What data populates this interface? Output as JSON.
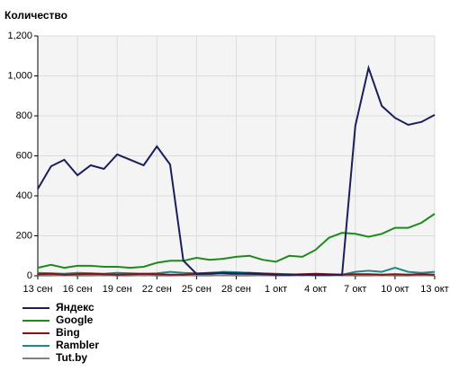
{
  "chart_data": {
    "type": "line",
    "title": "Количество",
    "categories": [
      "13 сен",
      null,
      null,
      "16 сен",
      null,
      null,
      "19 сен",
      null,
      null,
      "22 сен",
      null,
      null,
      "25 сен",
      null,
      null,
      "28 сен",
      null,
      null,
      "1 окт",
      null,
      null,
      "4 окт",
      null,
      null,
      "7 окт",
      null,
      null,
      "10 окт",
      null,
      null,
      "13 окт"
    ],
    "series": [
      {
        "name": "Яндекс",
        "color": "#1a1f5c",
        "values": [
          435,
          548,
          580,
          503,
          553,
          535,
          607,
          580,
          553,
          647,
          557,
          76,
          9,
          10,
          15,
          12,
          10,
          8,
          5,
          5,
          5,
          5,
          5,
          5,
          750,
          1040,
          850,
          790,
          755,
          770,
          805
        ]
      },
      {
        "name": "Google",
        "color": "#1e8a1e",
        "values": [
          40,
          55,
          40,
          50,
          50,
          45,
          45,
          40,
          45,
          65,
          75,
          75,
          90,
          80,
          85,
          95,
          100,
          80,
          70,
          100,
          95,
          130,
          190,
          215,
          210,
          195,
          210,
          240,
          240,
          265,
          310
        ]
      },
      {
        "name": "Bing",
        "color": "#8b1010",
        "values": [
          8,
          10,
          6,
          8,
          10,
          8,
          6,
          8,
          10,
          8,
          6,
          6,
          10,
          15,
          12,
          10,
          15,
          10,
          8,
          6,
          8,
          10,
          8,
          6,
          8,
          8,
          6,
          8,
          6,
          8,
          6
        ]
      },
      {
        "name": "Rambler",
        "color": "#1a8a8a",
        "values": [
          15,
          12,
          10,
          15,
          12,
          10,
          15,
          12,
          10,
          12,
          20,
          15,
          12,
          15,
          20,
          18,
          15,
          12,
          10,
          8,
          5,
          5,
          5,
          5,
          20,
          25,
          20,
          40,
          20,
          15,
          20
        ]
      },
      {
        "name": "Tut.by",
        "color": "#808080",
        "values": [
          3,
          3,
          2,
          3,
          3,
          2,
          3,
          3,
          2,
          3,
          3,
          2,
          3,
          3,
          2,
          3,
          3,
          2,
          3,
          3,
          2,
          3,
          3,
          2,
          3,
          3,
          2,
          3,
          3,
          2,
          3
        ]
      }
    ],
    "ylim": [
      0,
      1200
    ],
    "yticks": [
      0,
      200,
      400,
      600,
      800,
      {
        "value": 1000,
        "label": "1,000"
      },
      {
        "value": 1200,
        "label": "1,200"
      }
    ],
    "grid": true
  }
}
